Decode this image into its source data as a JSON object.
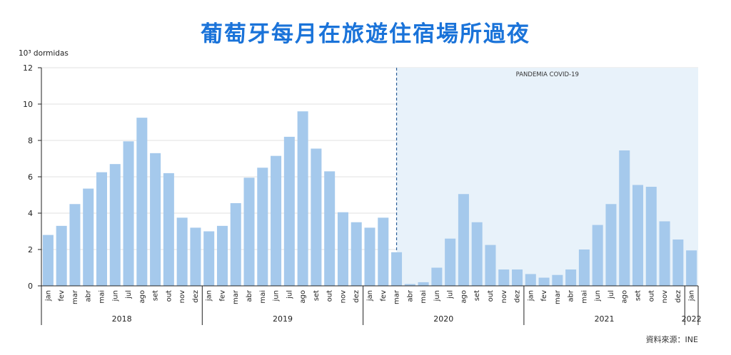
{
  "title": "葡萄牙每月在旅遊住宿場所過夜",
  "source": "資料來源：INE",
  "chart_data": {
    "type": "bar",
    "ylabel": "10³ dormidas",
    "ylim": [
      0,
      12
    ],
    "yticks": [
      0,
      2,
      4,
      6,
      8,
      10,
      12
    ],
    "grid": true,
    "color": "#a5c9ec",
    "months": [
      "jan",
      "fev",
      "mar",
      "abr",
      "mai",
      "jun",
      "jul",
      "ago",
      "set",
      "out",
      "nov",
      "dez",
      "jan",
      "fev",
      "mar",
      "abr",
      "mai",
      "jun",
      "jul",
      "ago",
      "set",
      "out",
      "nov",
      "dez",
      "jan",
      "fev",
      "mar",
      "abr",
      "mai",
      "jun",
      "jul",
      "ago",
      "set",
      "out",
      "nov",
      "dez",
      "jan",
      "fev",
      "mar",
      "abr",
      "mai",
      "jun",
      "jul",
      "ago",
      "set",
      "out",
      "nov",
      "dez",
      "jan"
    ],
    "years": [
      {
        "label": "2018",
        "count": 12
      },
      {
        "label": "2019",
        "count": 12
      },
      {
        "label": "2020",
        "count": 12
      },
      {
        "label": "2021",
        "count": 12
      },
      {
        "label": "2022",
        "count": 1
      }
    ],
    "values": [
      2.8,
      3.3,
      4.5,
      5.35,
      6.25,
      6.7,
      7.95,
      9.25,
      7.3,
      6.2,
      3.75,
      3.2,
      3.0,
      3.3,
      4.55,
      5.95,
      6.5,
      7.15,
      8.2,
      9.6,
      7.55,
      6.3,
      4.05,
      3.5,
      3.2,
      3.75,
      1.85,
      0.1,
      0.2,
      1.0,
      2.6,
      5.05,
      3.5,
      2.25,
      0.9,
      0.9,
      0.65,
      0.45,
      0.6,
      0.9,
      2.0,
      3.35,
      4.5,
      7.45,
      5.55,
      5.45,
      3.55,
      2.55,
      1.95
    ],
    "annotation": {
      "label": "PANDEMIA COVID-19",
      "start_index": 26
    }
  }
}
